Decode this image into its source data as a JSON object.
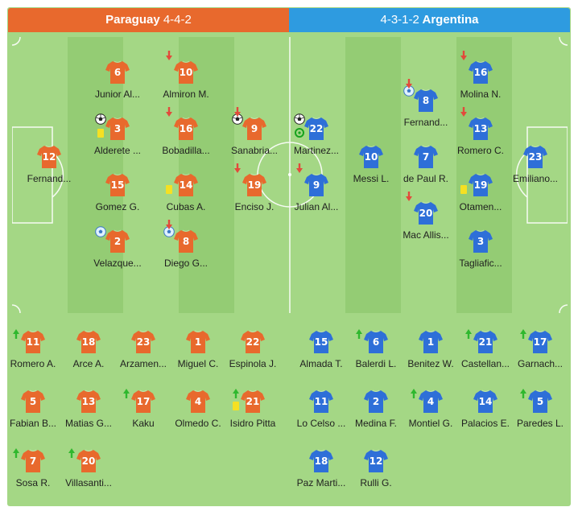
{
  "home": {
    "name": "Paraguay",
    "formation": "4-4-2",
    "color": "#e8692d",
    "starters": [
      {
        "number": "12",
        "name": "Fernand...",
        "events": []
      },
      {
        "number": "6",
        "name": "Junior Al...",
        "events": []
      },
      {
        "number": "3",
        "name": "Alderete ...",
        "events": [
          "ball-icon",
          "yellow-card-icon"
        ]
      },
      {
        "number": "15",
        "name": "Gomez G.",
        "events": []
      },
      {
        "number": "2",
        "name": "Velazque...",
        "events": [
          "own-goal-icon"
        ]
      },
      {
        "number": "10",
        "name": "Almiron M.",
        "events": [
          "sub-off-arrow-icon"
        ]
      },
      {
        "number": "16",
        "name": "Bobadilla...",
        "events": [
          "sub-off-arrow-icon"
        ]
      },
      {
        "number": "14",
        "name": "Cubas A.",
        "events": [
          "yellow-card-icon"
        ]
      },
      {
        "number": "8",
        "name": "Diego G...",
        "events": [
          "own-goal-icon",
          "sub-off-arrow-icon"
        ]
      },
      {
        "number": "9",
        "name": "Sanabria...",
        "events": [
          "ball-icon",
          "sub-off-arrow-icon"
        ]
      },
      {
        "number": "19",
        "name": "Enciso J.",
        "events": [
          "sub-off-arrow-icon"
        ]
      }
    ],
    "bench": [
      {
        "number": "11",
        "name": "Romero A.",
        "events": [
          "sub-on-arrow-icon"
        ]
      },
      {
        "number": "18",
        "name": "Arce A.",
        "events": []
      },
      {
        "number": "23",
        "name": "Arzamen...",
        "events": []
      },
      {
        "number": "1",
        "name": "Miguel C.",
        "events": []
      },
      {
        "number": "22",
        "name": "Espinola J.",
        "events": []
      },
      {
        "number": "5",
        "name": "Fabian B...",
        "events": []
      },
      {
        "number": "13",
        "name": "Matias G...",
        "events": []
      },
      {
        "number": "17",
        "name": "Kaku",
        "events": [
          "sub-on-arrow-icon"
        ]
      },
      {
        "number": "4",
        "name": "Olmedo C.",
        "events": []
      },
      {
        "number": "21",
        "name": "Isidro Pitta",
        "events": [
          "yellow-card-icon",
          "sub-on-arrow-icon"
        ]
      },
      {
        "number": "7",
        "name": "Sosa R.",
        "events": [
          "sub-on-arrow-icon"
        ]
      },
      {
        "number": "20",
        "name": "Villasanti...",
        "events": [
          "sub-on-arrow-icon"
        ]
      }
    ]
  },
  "away": {
    "name": "Argentina",
    "formation": "4-3-1-2",
    "color": "#2e6fd8",
    "starters": [
      {
        "number": "22",
        "name": "Martinez...",
        "events": [
          "ball-icon",
          "assist-icon"
        ]
      },
      {
        "number": "9",
        "name": "Julian Al...",
        "events": [
          "sub-off-arrow-icon"
        ]
      },
      {
        "number": "10",
        "name": "Messi L.",
        "events": []
      },
      {
        "number": "8",
        "name": "Fernand...",
        "events": [
          "own-goal-icon",
          "sub-off-arrow-icon"
        ]
      },
      {
        "number": "7",
        "name": "de Paul R.",
        "events": []
      },
      {
        "number": "20",
        "name": "Mac Allis...",
        "events": [
          "sub-off-arrow-icon"
        ]
      },
      {
        "number": "16",
        "name": "Molina N.",
        "events": [
          "sub-off-arrow-icon"
        ]
      },
      {
        "number": "13",
        "name": "Romero C.",
        "events": [
          "sub-off-arrow-icon"
        ]
      },
      {
        "number": "19",
        "name": "Otamen...",
        "events": [
          "yellow-card-icon"
        ]
      },
      {
        "number": "3",
        "name": "Tagliafic...",
        "events": []
      },
      {
        "number": "23",
        "name": "Emiliano...",
        "events": []
      }
    ],
    "bench": [
      {
        "number": "15",
        "name": "Almada T.",
        "events": []
      },
      {
        "number": "6",
        "name": "Balerdi L.",
        "events": [
          "sub-on-arrow-icon"
        ]
      },
      {
        "number": "1",
        "name": "Benitez W.",
        "events": []
      },
      {
        "number": "21",
        "name": "Castellan...",
        "events": [
          "sub-on-arrow-icon"
        ]
      },
      {
        "number": "17",
        "name": "Garnach...",
        "events": [
          "sub-on-arrow-icon"
        ]
      },
      {
        "number": "11",
        "name": "Lo Celso ...",
        "events": []
      },
      {
        "number": "2",
        "name": "Medina F.",
        "events": []
      },
      {
        "number": "4",
        "name": "Montiel G.",
        "events": [
          "sub-on-arrow-icon"
        ]
      },
      {
        "number": "14",
        "name": "Palacios E.",
        "events": []
      },
      {
        "number": "5",
        "name": "Paredes L.",
        "events": [
          "sub-on-arrow-icon"
        ]
      },
      {
        "number": "18",
        "name": "Paz Marti...",
        "events": []
      },
      {
        "number": "12",
        "name": "Rulli G.",
        "events": []
      }
    ]
  }
}
